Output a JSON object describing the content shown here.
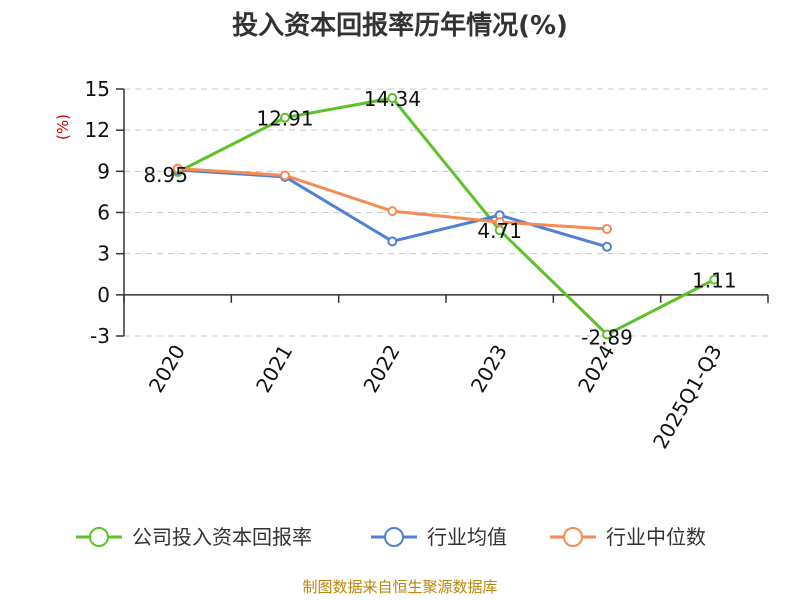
{
  "chart_data": {
    "type": "line",
    "title": "投入资本回报率历年情况(%)",
    "ylabel": "(%)",
    "xlabel": "",
    "categories": [
      "2020",
      "2021",
      "2022",
      "2023",
      "2024",
      "2025Q1-Q3"
    ],
    "ylim": [
      -3,
      15
    ],
    "yticks": [
      -3,
      0,
      3,
      6,
      9,
      12,
      15
    ],
    "grid": true,
    "legend_position": "bottom",
    "series": [
      {
        "name": "公司投入资本回报率",
        "color": "#5cc22a",
        "values": [
          8.95,
          12.91,
          14.34,
          4.71,
          -2.89,
          1.11
        ],
        "labels": [
          "8.95",
          "12.91",
          "14.34",
          "4.71",
          "-2.89",
          "1.11"
        ]
      },
      {
        "name": "行业均值",
        "color": "#4f80d6",
        "values": [
          9.1,
          8.6,
          3.9,
          5.8,
          3.5,
          null
        ]
      },
      {
        "name": "行业中位数",
        "color": "#f58a55",
        "values": [
          9.2,
          8.7,
          6.1,
          5.3,
          4.8,
          null
        ]
      }
    ]
  },
  "source": "制图数据来自恒生聚源数据库"
}
